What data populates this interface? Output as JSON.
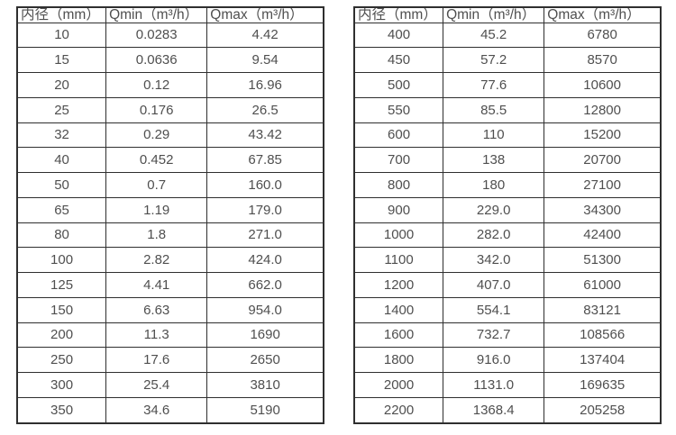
{
  "colors": {
    "bg": "#ffffff",
    "border": "#2f2f2f",
    "text": "#4f4f4f"
  },
  "chart_data": [
    {
      "type": "table",
      "columns": [
        "内径（mm）",
        "Qmin（m³/h）",
        "Qmax（m³/h）"
      ],
      "rows": [
        [
          "10",
          "0.0283",
          "4.42"
        ],
        [
          "15",
          "0.0636",
          "9.54"
        ],
        [
          "20",
          "0.12",
          "16.96"
        ],
        [
          "25",
          "0.176",
          "26.5"
        ],
        [
          "32",
          "0.29",
          "43.42"
        ],
        [
          "40",
          "0.452",
          "67.85"
        ],
        [
          "50",
          "0.7",
          "160.0"
        ],
        [
          "65",
          "1.19",
          "179.0"
        ],
        [
          "80",
          "1.8",
          "271.0"
        ],
        [
          "100",
          "2.82",
          "424.0"
        ],
        [
          "125",
          "4.41",
          "662.0"
        ],
        [
          "150",
          "6.63",
          "954.0"
        ],
        [
          "200",
          "11.3",
          "1690"
        ],
        [
          "250",
          "17.6",
          "2650"
        ],
        [
          "300",
          "25.4",
          "3810"
        ],
        [
          "350",
          "34.6",
          "5190"
        ]
      ]
    },
    {
      "type": "table",
      "columns": [
        "内径（mm）",
        "Qmin（m³/h）",
        "Qmax（m³/h）"
      ],
      "rows": [
        [
          "400",
          "45.2",
          "6780"
        ],
        [
          "450",
          "57.2",
          "8570"
        ],
        [
          "500",
          "77.6",
          "10600"
        ],
        [
          "550",
          "85.5",
          "12800"
        ],
        [
          "600",
          "110",
          "15200"
        ],
        [
          "700",
          "138",
          "20700"
        ],
        [
          "800",
          "180",
          "27100"
        ],
        [
          "900",
          "229.0",
          "34300"
        ],
        [
          "1000",
          "282.0",
          "42400"
        ],
        [
          "1100",
          "342.0",
          "51300"
        ],
        [
          "1200",
          "407.0",
          "61000"
        ],
        [
          "1400",
          "554.1",
          "83121"
        ],
        [
          "1600",
          "732.7",
          "108566"
        ],
        [
          "1800",
          "916.0",
          "137404"
        ],
        [
          "2000",
          "1131.0",
          "169635"
        ],
        [
          "2200",
          "1368.4",
          "205258"
        ]
      ]
    }
  ]
}
